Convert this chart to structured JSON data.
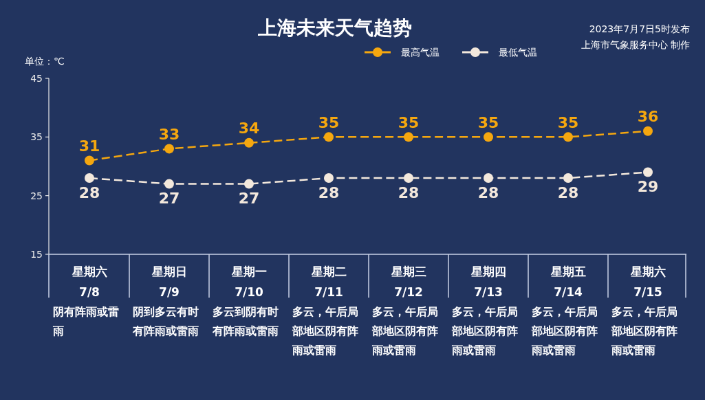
{
  "chart_data": {
    "type": "line",
    "title": "上海未来天气趋势",
    "ylabel": "单位：℃",
    "categories": [
      "星期六\n7/8",
      "星期日\n7/9",
      "星期一\n7/10",
      "星期二\n7/11",
      "星期三\n7/12",
      "星期四\n7/13",
      "星期五\n7/14",
      "星期六\n7/15"
    ],
    "series": [
      {
        "name": "最高气温",
        "color": "#f5a70f",
        "values": [
          31,
          33,
          34,
          35,
          35,
          35,
          35,
          36
        ]
      },
      {
        "name": "最低气温",
        "color": "#f3e8dc",
        "values": [
          28,
          27,
          27,
          28,
          28,
          28,
          28,
          29
        ]
      }
    ],
    "ylim": [
      15,
      45
    ],
    "yticks": [
      15,
      25,
      35,
      45
    ],
    "legend": "top",
    "marker": "circle",
    "line_style": "dashed",
    "data_labels": true,
    "annotations": [
      "2023年7月7日5时发布",
      "上海市气象服务中心 制作",
      "阴有阵雨或雷雨",
      "阴到多云有时有阵雨或雷雨",
      "多云到阴有时有阵雨或雷雨",
      "多云，午后局部地区阴有阵雨或雷雨",
      "多云，午后局部地区阴有阵雨或雷雨",
      "多云，午后局部地区阴有阵雨或雷雨",
      "多云，午后局部地区阴有阵雨或雷雨",
      "多云，午后局部地区阴有阵雨或雷雨"
    ]
  }
}
